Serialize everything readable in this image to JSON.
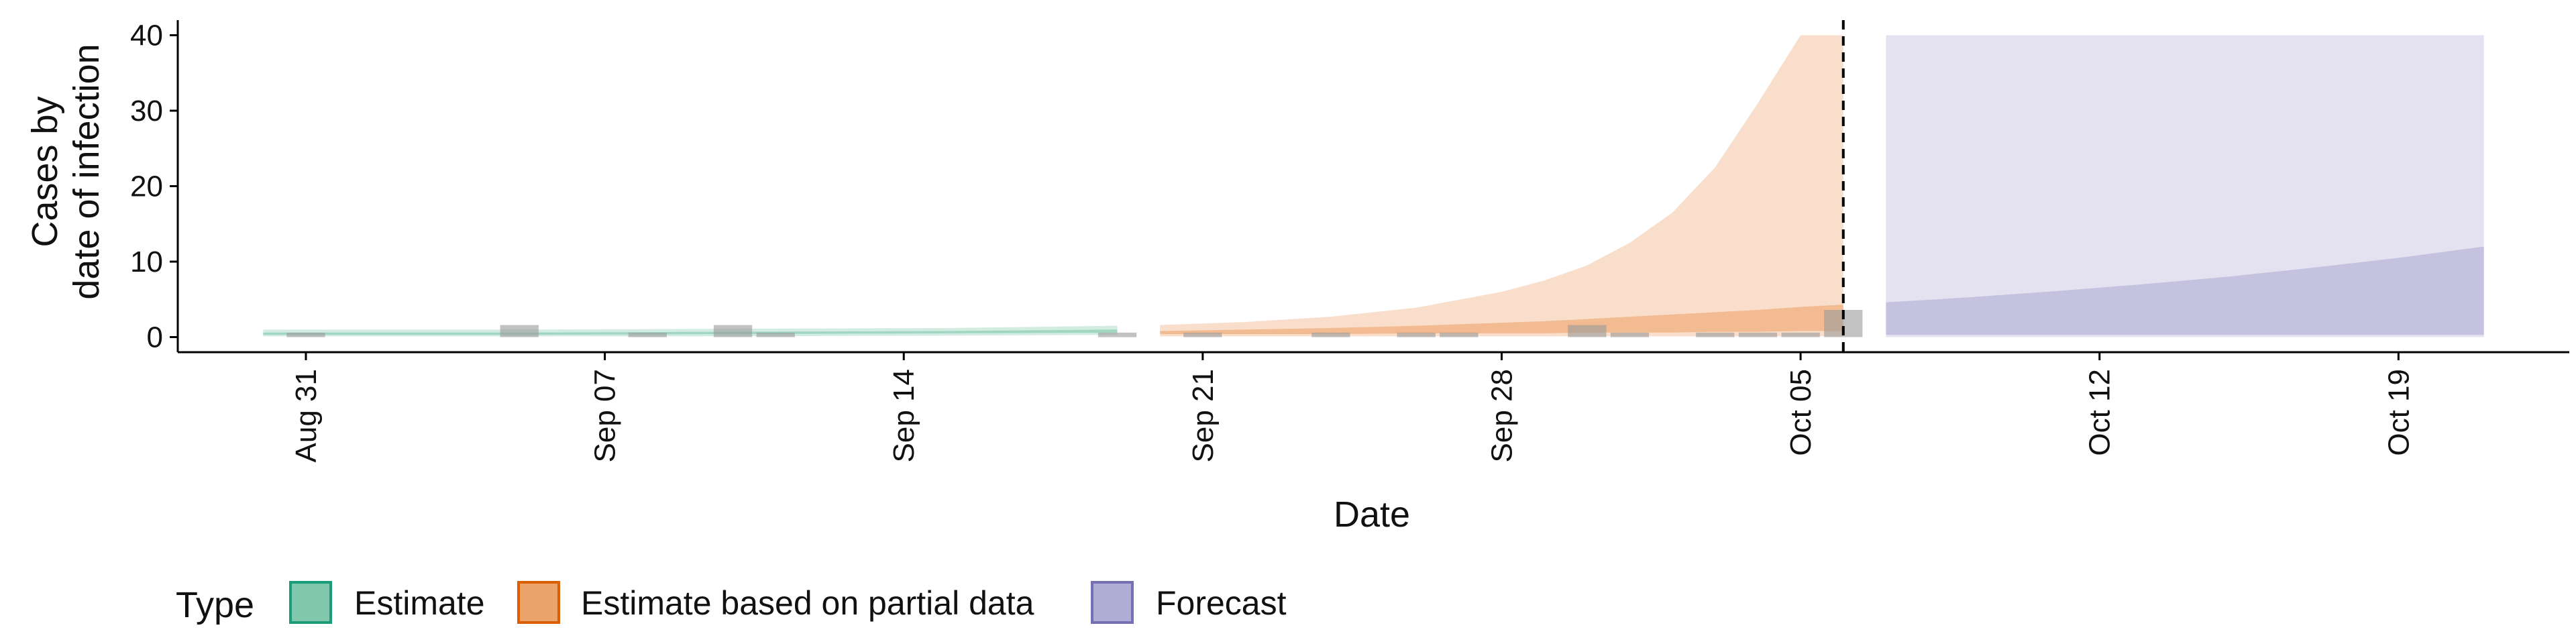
{
  "chart_data": {
    "type": "area",
    "title": "",
    "xlabel": "Date",
    "ylabel_lines": [
      "Cases by",
      "date of infection"
    ],
    "xlim": [
      "2020-08-28",
      "2020-10-23"
    ],
    "ylim": [
      -2,
      42
    ],
    "x_ticks": [
      {
        "date": "2020-08-31",
        "label": "Aug 31"
      },
      {
        "date": "2020-09-07",
        "label": "Sep 07"
      },
      {
        "date": "2020-09-14",
        "label": "Sep 14"
      },
      {
        "date": "2020-09-21",
        "label": "Sep 21"
      },
      {
        "date": "2020-09-28",
        "label": "Sep 28"
      },
      {
        "date": "2020-10-05",
        "label": "Oct 05"
      },
      {
        "date": "2020-10-12",
        "label": "Oct 12"
      },
      {
        "date": "2020-10-19",
        "label": "Oct 19"
      }
    ],
    "y_ticks": [
      0,
      10,
      20,
      30,
      40
    ],
    "grid": false,
    "vline_date": "2020-10-06",
    "legend": {
      "title": "Type",
      "position": "bottom",
      "entries": [
        {
          "label": "Estimate",
          "fill": "#7fc8ad",
          "stroke": "#1b9e77"
        },
        {
          "label": "Estimate based on partial data",
          "fill": "#eda46b",
          "stroke": "#d95f02"
        },
        {
          "label": "Forecast",
          "fill": "#b1add6",
          "stroke": "#7570b3"
        }
      ]
    },
    "bars": {
      "color": "#999999",
      "points": [
        {
          "date": "2020-08-31",
          "value": 0.6
        },
        {
          "date": "2020-09-05",
          "value": 1.6
        },
        {
          "date": "2020-09-08",
          "value": 0.6
        },
        {
          "date": "2020-09-10",
          "value": 1.6
        },
        {
          "date": "2020-09-11",
          "value": 0.6
        },
        {
          "date": "2020-09-19",
          "value": 0.6
        },
        {
          "date": "2020-09-21",
          "value": 0.6
        },
        {
          "date": "2020-09-24",
          "value": 0.6
        },
        {
          "date": "2020-09-26",
          "value": 0.6
        },
        {
          "date": "2020-09-27",
          "value": 0.6
        },
        {
          "date": "2020-09-30",
          "value": 1.6
        },
        {
          "date": "2020-10-01",
          "value": 0.6
        },
        {
          "date": "2020-10-03",
          "value": 0.6
        },
        {
          "date": "2020-10-04",
          "value": 0.6
        },
        {
          "date": "2020-10-05",
          "value": 0.6
        },
        {
          "date": "2020-10-06",
          "value": 3.6
        }
      ]
    },
    "series": [
      {
        "type": "Estimate",
        "fill": "#7fc8ad",
        "stroke": "#1b9e77",
        "x": [
          "2020-08-30",
          "2020-09-05",
          "2020-09-10",
          "2020-09-15",
          "2020-09-19"
        ],
        "outer_lower": [
          0.1,
          0.1,
          0.1,
          0.2,
          0.3
        ],
        "outer_upper": [
          1.0,
          1.0,
          1.1,
          1.2,
          1.5
        ],
        "inner_lower": [
          0.3,
          0.3,
          0.4,
          0.5,
          0.6
        ],
        "inner_upper": [
          0.6,
          0.6,
          0.7,
          0.8,
          1.0
        ]
      },
      {
        "type": "Estimate based on partial data",
        "fill": "#eda46b",
        "stroke": "#d95f02",
        "x": [
          "2020-09-20",
          "2020-09-22",
          "2020-09-24",
          "2020-09-26",
          "2020-09-28",
          "2020-09-29",
          "2020-09-30",
          "2020-10-01",
          "2020-10-02",
          "2020-10-03",
          "2020-10-04",
          "2020-10-05",
          "2020-10-06"
        ],
        "outer_lower": [
          0.1,
          0.1,
          0.1,
          0.1,
          0.1,
          0.1,
          0.1,
          0.1,
          0.1,
          0.1,
          0.1,
          0.1,
          0.1
        ],
        "outer_upper": [
          1.6,
          2.0,
          2.7,
          3.9,
          6.0,
          7.5,
          9.5,
          12.5,
          16.5,
          22.5,
          31.0,
          40.0,
          40.0
        ],
        "inner_lower": [
          0.4,
          0.4,
          0.4,
          0.5,
          0.5,
          0.5,
          0.6,
          0.6,
          0.6,
          0.7,
          0.7,
          0.8,
          0.8
        ],
        "inner_upper": [
          0.8,
          1.0,
          1.2,
          1.5,
          1.9,
          2.1,
          2.4,
          2.7,
          3.0,
          3.3,
          3.6,
          4.0,
          4.3
        ]
      },
      {
        "type": "Forecast",
        "fill": "#b1add6",
        "stroke": "#7570b3",
        "x": [
          "2020-10-07",
          "2020-10-09",
          "2020-10-11",
          "2020-10-13",
          "2020-10-15",
          "2020-10-17",
          "2020-10-19",
          "2020-10-21"
        ],
        "outer_lower": [
          0.0,
          0.0,
          0.0,
          0.0,
          0.0,
          0.0,
          0.0,
          0.0
        ],
        "outer_upper": [
          40,
          40,
          40,
          40,
          40,
          40,
          40,
          40
        ],
        "inner_lower": [
          0.3,
          0.3,
          0.3,
          0.3,
          0.3,
          0.3,
          0.3,
          0.3
        ],
        "inner_upper": [
          4.6,
          5.3,
          6.1,
          7.0,
          8.0,
          9.2,
          10.5,
          12.0
        ]
      }
    ]
  }
}
